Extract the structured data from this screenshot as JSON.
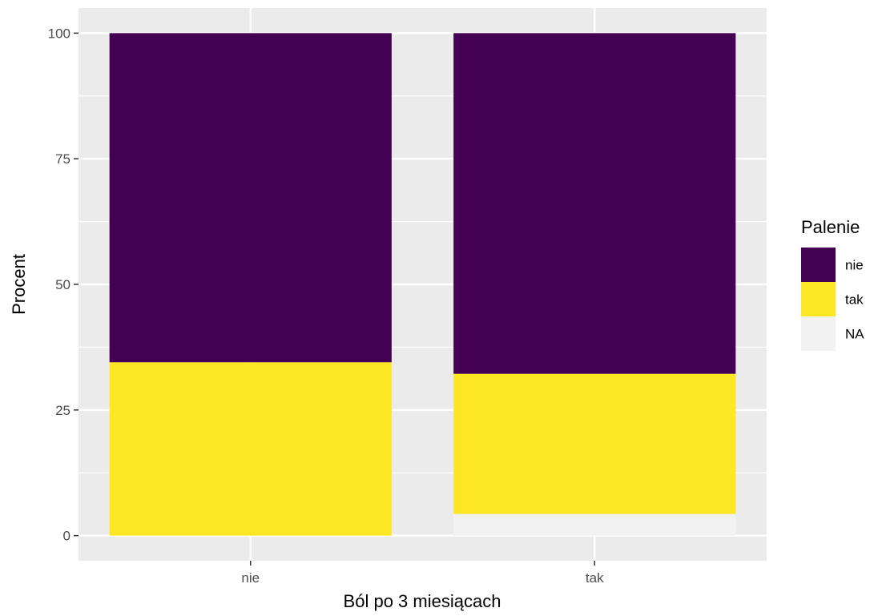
{
  "chart_data": {
    "type": "bar",
    "stacked": true,
    "categories": [
      "nie",
      "tak"
    ],
    "series": [
      {
        "name": "nie",
        "values": [
          65.5,
          67.8
        ],
        "color": "#440154"
      },
      {
        "name": "tak",
        "values": [
          34.5,
          27.9
        ],
        "color": "#FDE725"
      },
      {
        "name": "NA",
        "values": [
          0,
          4.3
        ],
        "color": "#F2F2F2"
      }
    ],
    "stack_order_bottom_to_top": [
      "NA",
      "tak",
      "nie"
    ],
    "xlabel": "Ból po 3 miesiącach",
    "ylabel": "Procent",
    "ylim": [
      -5,
      105
    ],
    "yticks": [
      0,
      25,
      50,
      75,
      100
    ],
    "ytick_labels": [
      "0",
      "25",
      "50",
      "75",
      "100"
    ],
    "grid": true,
    "panel_background": "#EBEBEB",
    "legend": {
      "title": "Palenie",
      "placement": "right",
      "entries": [
        "nie",
        "tak",
        "NA"
      ]
    }
  }
}
